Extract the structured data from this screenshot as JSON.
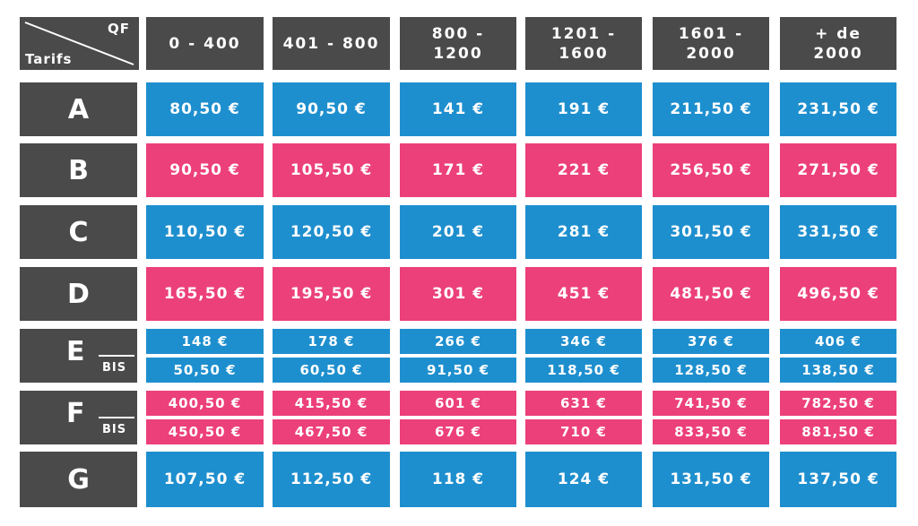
{
  "corner": {
    "top": "QF",
    "bottom": "Tarifs"
  },
  "columns": [
    [
      "0 - 400"
    ],
    [
      "401 - 800"
    ],
    [
      "800 -",
      "1200"
    ],
    [
      "1201 -",
      "1600"
    ],
    [
      "1601 -",
      "2000"
    ],
    [
      "+ de",
      "2000"
    ]
  ],
  "rows": [
    {
      "label": "A",
      "color": "blue",
      "values": [
        "80,50 €",
        "90,50 €",
        "141 €",
        "191 €",
        "211,50 €",
        "231,50 €"
      ]
    },
    {
      "label": "B",
      "color": "pink",
      "values": [
        "90,50 €",
        "105,50 €",
        "171 €",
        "221 €",
        "256,50 €",
        "271,50 €"
      ]
    },
    {
      "label": "C",
      "color": "blue",
      "values": [
        "110,50 €",
        "120,50 €",
        "201 €",
        "281 €",
        "301,50 €",
        "331,50 €"
      ]
    },
    {
      "label": "D",
      "color": "pink",
      "values": [
        "165,50 €",
        "195,50 €",
        "301 €",
        "451 €",
        "481,50 €",
        "496,50 €"
      ]
    },
    {
      "label": "E",
      "color": "blue",
      "bis_label": "BIS",
      "values": [
        "148 €",
        "178 €",
        "266 €",
        "346 €",
        "376 €",
        "406 €"
      ],
      "bis_values": [
        "50,50 €",
        "60,50 €",
        "91,50 €",
        "118,50 €",
        "128,50 €",
        "138,50 €"
      ]
    },
    {
      "label": "F",
      "color": "pink",
      "bis_label": "BIS",
      "values": [
        "400,50 €",
        "415,50 €",
        "601 €",
        "631 €",
        "741,50 €",
        "782,50 €"
      ],
      "bis_values": [
        "450,50 €",
        "467,50 €",
        "676 €",
        "710 €",
        "833,50 €",
        "881,50 €"
      ]
    },
    {
      "label": "G",
      "color": "blue",
      "values": [
        "107,50 €",
        "112,50 €",
        "118 €",
        "124 €",
        "131,50 €",
        "137,50 €"
      ]
    }
  ],
  "colors": {
    "grey": "#4a4a4a",
    "blue": "#1e8fce",
    "pink": "#ec407a"
  }
}
